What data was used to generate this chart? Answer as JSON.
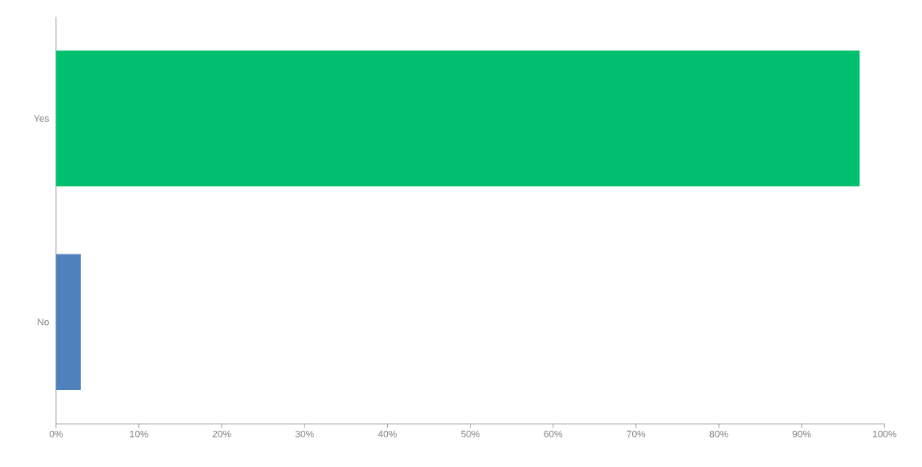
{
  "chart_data": {
    "type": "bar",
    "orientation": "horizontal",
    "categories": [
      "Yes",
      "No"
    ],
    "values": [
      97,
      3
    ],
    "colors": [
      "#00bf6f",
      "#4f81bd"
    ],
    "xlim": [
      0,
      100
    ],
    "xticks": [
      {
        "value": 0,
        "label": "0%"
      },
      {
        "value": 10,
        "label": "10%"
      },
      {
        "value": 20,
        "label": "20%"
      },
      {
        "value": 30,
        "label": "30%"
      },
      {
        "value": 40,
        "label": "40%"
      },
      {
        "value": 50,
        "label": "50%"
      },
      {
        "value": 60,
        "label": "60%"
      },
      {
        "value": 70,
        "label": "70%"
      },
      {
        "value": 80,
        "label": "80%"
      },
      {
        "value": 90,
        "label": "90%"
      },
      {
        "value": 100,
        "label": "100%"
      }
    ]
  }
}
